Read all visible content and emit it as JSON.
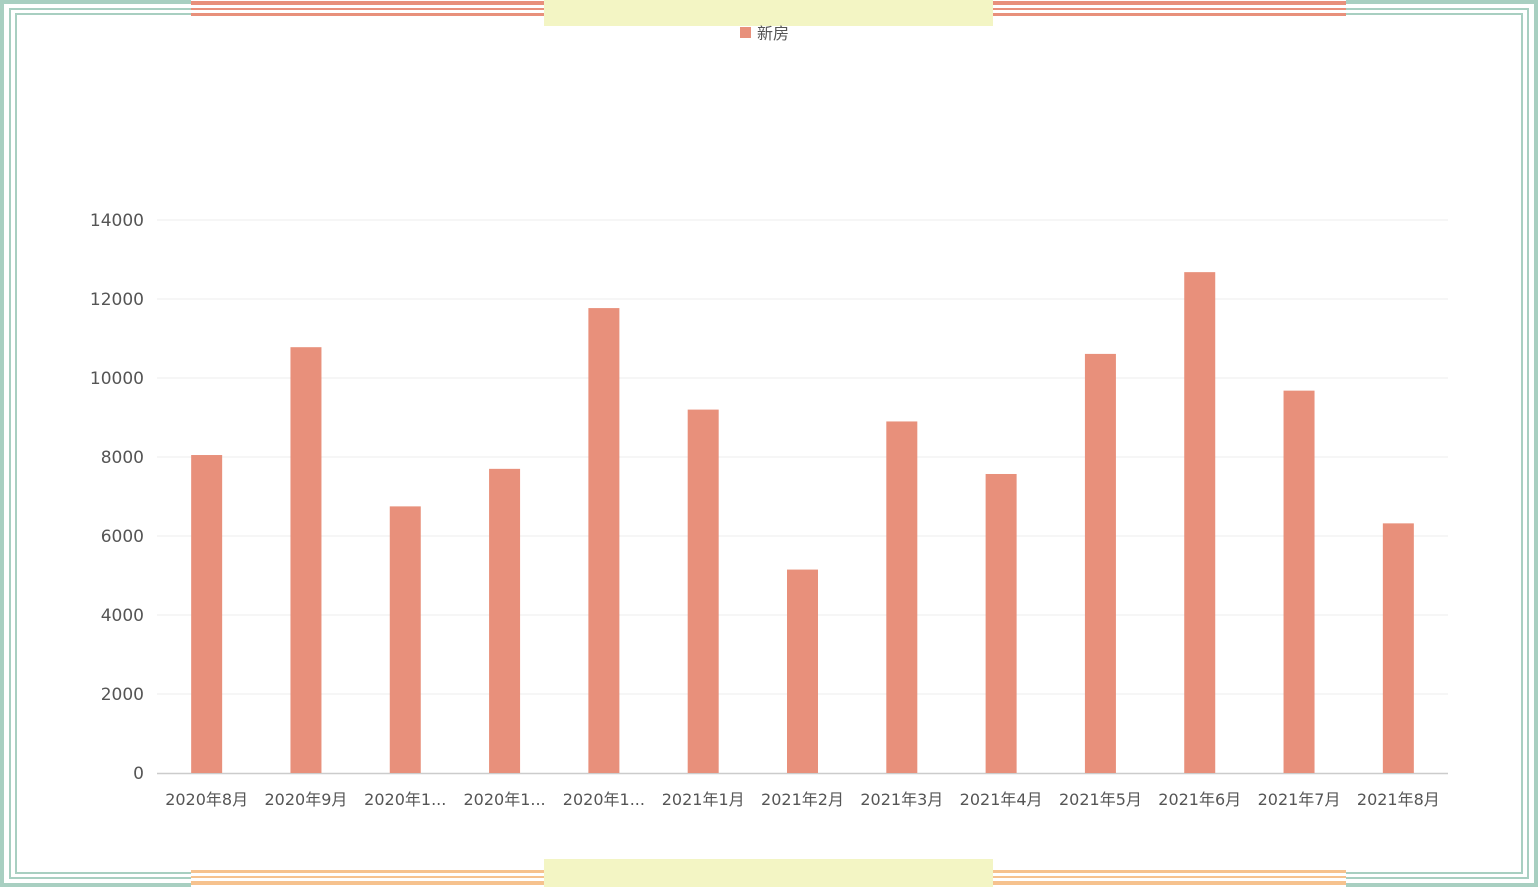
{
  "colors": {
    "bar": "#e8907b",
    "frame_outer": "#a8cfc1",
    "frame_top_accent": "#e8907b",
    "frame_bottom_accent": "#f6c28e",
    "frame_center_block": "#f3f5c4",
    "grid": "#ececec",
    "axis": "#cccccc",
    "tick_text": "#555555"
  },
  "legend": {
    "label": "新房",
    "position": "top-center"
  },
  "chart_data": {
    "type": "bar",
    "categories": [
      "2020年8月",
      "2020年9月",
      "2020年1...",
      "2020年1...",
      "2020年1...",
      "2021年1月",
      "2021年2月",
      "2021年3月",
      "2021年4月",
      "2021年5月",
      "2021年6月",
      "2021年7月",
      "2021年8月"
    ],
    "series": [
      {
        "name": "新房",
        "values": [
          8050,
          10780,
          6750,
          7700,
          11770,
          9200,
          5150,
          8900,
          7570,
          10610,
          12680,
          9680,
          6320
        ]
      }
    ],
    "ylim": [
      0,
      14000
    ],
    "yticks": [
      0,
      2000,
      4000,
      6000,
      8000,
      10000,
      12000,
      14000
    ],
    "grid": true,
    "xlabel": "",
    "ylabel": "",
    "title": ""
  }
}
